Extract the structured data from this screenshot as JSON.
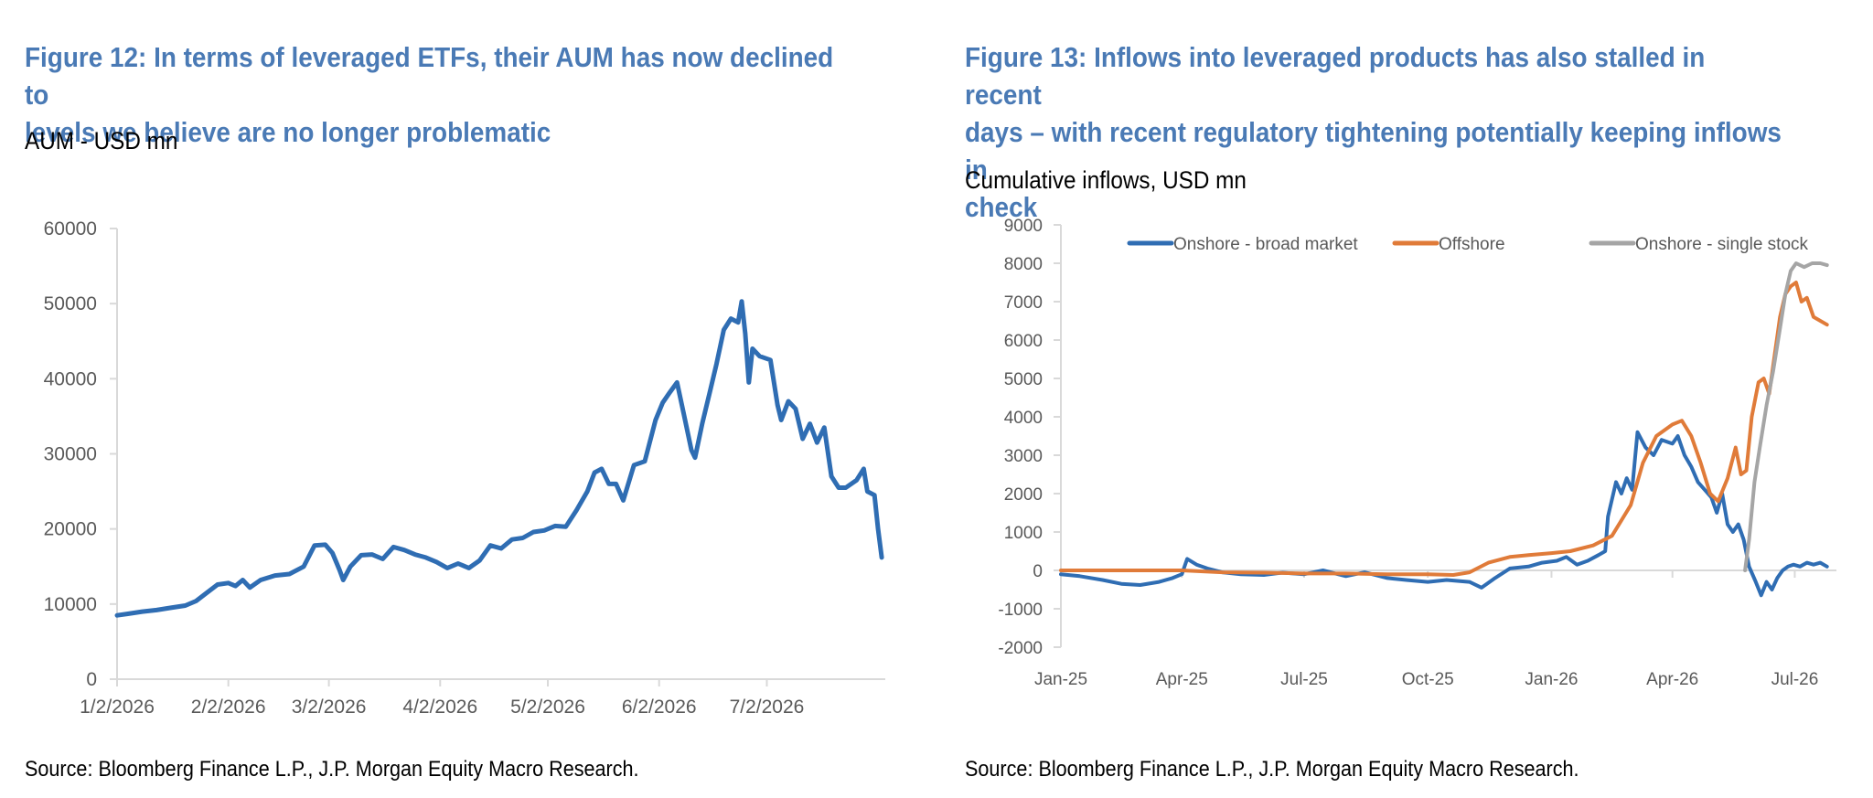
{
  "figures": [
    {
      "title_line1": "Figure 12: In terms of leveraged ETFs, their AUM has now declined to",
      "title_line2": "levels we believe are no longer problematic",
      "subtitle": "AUM - USD mn",
      "source": "Source: Bloomberg Finance L.P., J.P. Morgan Equity Macro Research."
    },
    {
      "title_line1": "Figure 13: Inflows into leveraged products has also stalled in recent",
      "title_line2": "days – with recent regulatory tightening potentially keeping inflows in",
      "title_line3": "check",
      "subtitle": "Cumulative inflows, USD mn",
      "source": "Source: Bloomberg Finance L.P., J.P. Morgan Equity Macro Research."
    }
  ],
  "colors": {
    "title": "#4a7ab5",
    "blue": "#2f6db3",
    "orange": "#e07b39",
    "gray": "#a5a5a5",
    "axis_text": "#595959",
    "axis_line": "#d9d9d9"
  },
  "chart_data": [
    {
      "type": "line",
      "ylim": [
        0,
        60000
      ],
      "yticks": [
        0,
        10000,
        20000,
        30000,
        40000,
        50000,
        60000
      ],
      "xticks": [
        "1/2/2026",
        "2/2/2026",
        "3/2/2026",
        "4/2/2026",
        "5/2/2026",
        "6/2/2026",
        "7/2/2026"
      ],
      "grid": false,
      "legend": "none",
      "series": [
        {
          "color": "#2f6db3",
          "points": [
            [
              "2026-01-02",
              8500
            ],
            [
              "2026-01-05",
              8700
            ],
            [
              "2026-01-09",
              9000
            ],
            [
              "2026-01-13",
              9200
            ],
            [
              "2026-01-17",
              9500
            ],
            [
              "2026-01-21",
              9800
            ],
            [
              "2026-01-24",
              10400
            ],
            [
              "2026-01-27",
              11500
            ],
            [
              "2026-01-30",
              12600
            ],
            [
              "2026-02-02",
              12800
            ],
            [
              "2026-02-04",
              12400
            ],
            [
              "2026-02-06",
              13200
            ],
            [
              "2026-02-08",
              12200
            ],
            [
              "2026-02-11",
              13200
            ],
            [
              "2026-02-15",
              13800
            ],
            [
              "2026-02-19",
              14000
            ],
            [
              "2026-02-23",
              15000
            ],
            [
              "2026-02-26",
              17800
            ],
            [
              "2026-03-01",
              17900
            ],
            [
              "2026-03-03",
              16800
            ],
            [
              "2026-03-05",
              14500
            ],
            [
              "2026-03-06",
              13200
            ],
            [
              "2026-03-08",
              15000
            ],
            [
              "2026-03-11",
              16500
            ],
            [
              "2026-03-14",
              16600
            ],
            [
              "2026-03-17",
              16000
            ],
            [
              "2026-03-20",
              17600
            ],
            [
              "2026-03-23",
              17200
            ],
            [
              "2026-03-26",
              16600
            ],
            [
              "2026-03-29",
              16200
            ],
            [
              "2026-04-01",
              15600
            ],
            [
              "2026-04-04",
              14800
            ],
            [
              "2026-04-07",
              15400
            ],
            [
              "2026-04-10",
              14800
            ],
            [
              "2026-04-13",
              15800
            ],
            [
              "2026-04-16",
              17800
            ],
            [
              "2026-04-19",
              17400
            ],
            [
              "2026-04-22",
              18600
            ],
            [
              "2026-04-25",
              18800
            ],
            [
              "2026-04-28",
              19600
            ],
            [
              "2026-05-01",
              19800
            ],
            [
              "2026-05-04",
              20400
            ],
            [
              "2026-05-07",
              20300
            ],
            [
              "2026-05-10",
              22500
            ],
            [
              "2026-05-13",
              25000
            ],
            [
              "2026-05-15",
              27500
            ],
            [
              "2026-05-17",
              28000
            ],
            [
              "2026-05-19",
              26000
            ],
            [
              "2026-05-21",
              26000
            ],
            [
              "2026-05-23",
              23800
            ],
            [
              "2026-05-26",
              28500
            ],
            [
              "2026-05-29",
              29000
            ],
            [
              "2026-06-01",
              34500
            ],
            [
              "2026-06-03",
              36800
            ],
            [
              "2026-06-05",
              38200
            ],
            [
              "2026-06-07",
              39500
            ],
            [
              "2026-06-09",
              35000
            ],
            [
              "2026-06-11",
              30500
            ],
            [
              "2026-06-12",
              29500
            ],
            [
              "2026-06-14",
              34000
            ],
            [
              "2026-06-16",
              38000
            ],
            [
              "2026-06-18",
              42000
            ],
            [
              "2026-06-20",
              46500
            ],
            [
              "2026-06-22",
              48000
            ],
            [
              "2026-06-24",
              47500
            ],
            [
              "2026-06-25",
              50300
            ],
            [
              "2026-06-26",
              46000
            ],
            [
              "2026-06-27",
              39500
            ],
            [
              "2026-06-28",
              44000
            ],
            [
              "2026-06-30",
              43000
            ],
            [
              "2026-07-03",
              42500
            ],
            [
              "2026-07-05",
              36500
            ],
            [
              "2026-07-06",
              34500
            ],
            [
              "2026-07-08",
              37000
            ],
            [
              "2026-07-10",
              36000
            ],
            [
              "2026-07-12",
              32000
            ],
            [
              "2026-07-14",
              34000
            ],
            [
              "2026-07-16",
              31500
            ],
            [
              "2026-07-18",
              33500
            ],
            [
              "2026-07-20",
              27000
            ],
            [
              "2026-07-22",
              25500
            ],
            [
              "2026-07-24",
              25500
            ],
            [
              "2026-07-27",
              26500
            ],
            [
              "2026-07-29",
              28000
            ],
            [
              "2026-07-30",
              25000
            ],
            [
              "2026-08-01",
              24500
            ],
            [
              "2026-08-02",
              20000
            ],
            [
              "2026-08-03",
              16200
            ]
          ]
        }
      ]
    },
    {
      "type": "line",
      "ylim": [
        -2000,
        9000
      ],
      "yticks": [
        -2000,
        -1000,
        0,
        1000,
        2000,
        3000,
        4000,
        5000,
        6000,
        7000,
        8000,
        9000
      ],
      "xticks": [
        "Jan-25",
        "Apr-25",
        "Jul-25",
        "Oct-25",
        "Jan-26",
        "Apr-26",
        "Jul-26"
      ],
      "grid": false,
      "legend": "top-center",
      "series": [
        {
          "name": "Onshore - broad market",
          "color": "#2f6db3",
          "points": [
            [
              "2025-01-01",
              -100
            ],
            [
              "2025-01-15",
              -150
            ],
            [
              "2025-02-01",
              -250
            ],
            [
              "2025-02-15",
              -350
            ],
            [
              "2025-03-01",
              -380
            ],
            [
              "2025-03-15",
              -300
            ],
            [
              "2025-03-25",
              -200
            ],
            [
              "2025-04-01",
              -100
            ],
            [
              "2025-04-05",
              300
            ],
            [
              "2025-04-12",
              150
            ],
            [
              "2025-04-20",
              50
            ],
            [
              "2025-05-01",
              -50
            ],
            [
              "2025-05-15",
              -100
            ],
            [
              "2025-06-01",
              -120
            ],
            [
              "2025-06-15",
              -60
            ],
            [
              "2025-07-01",
              -100
            ],
            [
              "2025-07-15",
              0
            ],
            [
              "2025-08-01",
              -150
            ],
            [
              "2025-08-15",
              -50
            ],
            [
              "2025-09-01",
              -200
            ],
            [
              "2025-09-15",
              -250
            ],
            [
              "2025-10-01",
              -300
            ],
            [
              "2025-10-15",
              -250
            ],
            [
              "2025-11-01",
              -300
            ],
            [
              "2025-11-10",
              -450
            ],
            [
              "2025-11-20",
              -200
            ],
            [
              "2025-12-01",
              50
            ],
            [
              "2025-12-15",
              100
            ],
            [
              "2025-12-25",
              200
            ],
            [
              "2026-01-05",
              250
            ],
            [
              "2026-01-12",
              350
            ],
            [
              "2026-01-20",
              150
            ],
            [
              "2026-01-28",
              250
            ],
            [
              "2026-02-05",
              400
            ],
            [
              "2026-02-10",
              500
            ],
            [
              "2026-02-12",
              1400
            ],
            [
              "2026-02-18",
              2300
            ],
            [
              "2026-02-22",
              2000
            ],
            [
              "2026-02-26",
              2400
            ],
            [
              "2026-03-02",
              2100
            ],
            [
              "2026-03-06",
              3600
            ],
            [
              "2026-03-12",
              3200
            ],
            [
              "2026-03-18",
              3000
            ],
            [
              "2026-03-24",
              3400
            ],
            [
              "2026-04-01",
              3300
            ],
            [
              "2026-04-05",
              3500
            ],
            [
              "2026-04-10",
              3000
            ],
            [
              "2026-04-15",
              2700
            ],
            [
              "2026-04-20",
              2300
            ],
            [
              "2026-04-25",
              2100
            ],
            [
              "2026-04-30",
              1900
            ],
            [
              "2026-05-04",
              1500
            ],
            [
              "2026-05-08",
              2000
            ],
            [
              "2026-05-12",
              1200
            ],
            [
              "2026-05-16",
              1000
            ],
            [
              "2026-05-20",
              1200
            ],
            [
              "2026-05-24",
              800
            ],
            [
              "2026-05-28",
              100
            ],
            [
              "2026-06-02",
              -300
            ],
            [
              "2026-06-06",
              -650
            ],
            [
              "2026-06-10",
              -300
            ],
            [
              "2026-06-14",
              -500
            ],
            [
              "2026-06-18",
              -200
            ],
            [
              "2026-06-22",
              0
            ],
            [
              "2026-06-26",
              100
            ],
            [
              "2026-06-30",
              150
            ],
            [
              "2026-07-05",
              100
            ],
            [
              "2026-07-10",
              200
            ],
            [
              "2026-07-15",
              150
            ],
            [
              "2026-07-20",
              200
            ],
            [
              "2026-07-25",
              100
            ]
          ]
        },
        {
          "name": "Offshore",
          "color": "#e07b39",
          "points": [
            [
              "2025-01-01",
              0
            ],
            [
              "2025-02-01",
              0
            ],
            [
              "2025-03-01",
              0
            ],
            [
              "2025-04-01",
              0
            ],
            [
              "2025-05-01",
              -50
            ],
            [
              "2025-06-01",
              -60
            ],
            [
              "2025-07-01",
              -80
            ],
            [
              "2025-08-01",
              -80
            ],
            [
              "2025-09-01",
              -100
            ],
            [
              "2025-10-01",
              -100
            ],
            [
              "2025-10-20",
              -120
            ],
            [
              "2025-11-01",
              -50
            ],
            [
              "2025-11-15",
              200
            ],
            [
              "2025-12-01",
              350
            ],
            [
              "2025-12-15",
              400
            ],
            [
              "2026-01-01",
              450
            ],
            [
              "2026-01-15",
              500
            ],
            [
              "2026-02-01",
              650
            ],
            [
              "2026-02-15",
              900
            ],
            [
              "2026-03-01",
              1700
            ],
            [
              "2026-03-10",
              2800
            ],
            [
              "2026-03-20",
              3500
            ],
            [
              "2026-04-01",
              3800
            ],
            [
              "2026-04-08",
              3900
            ],
            [
              "2026-04-15",
              3500
            ],
            [
              "2026-04-22",
              2800
            ],
            [
              "2026-04-29",
              2000
            ],
            [
              "2026-05-05",
              1800
            ],
            [
              "2026-05-12",
              2400
            ],
            [
              "2026-05-18",
              3200
            ],
            [
              "2026-05-22",
              2500
            ],
            [
              "2026-05-26",
              2600
            ],
            [
              "2026-05-30",
              4000
            ],
            [
              "2026-06-04",
              4900
            ],
            [
              "2026-06-08",
              5000
            ],
            [
              "2026-06-12",
              4600
            ],
            [
              "2026-06-16",
              5600
            ],
            [
              "2026-06-20",
              6600
            ],
            [
              "2026-06-24",
              7200
            ],
            [
              "2026-06-28",
              7400
            ],
            [
              "2026-07-02",
              7500
            ],
            [
              "2026-07-06",
              7000
            ],
            [
              "2026-07-10",
              7100
            ],
            [
              "2026-07-15",
              6600
            ],
            [
              "2026-07-20",
              6500
            ],
            [
              "2026-07-25",
              6400
            ]
          ]
        },
        {
          "name": "Onshore - single stock",
          "color": "#a5a5a5",
          "points": [
            [
              "2026-05-25",
              0
            ],
            [
              "2026-05-28",
              800
            ],
            [
              "2026-06-01",
              2300
            ],
            [
              "2026-06-05",
              3200
            ],
            [
              "2026-06-10",
              4300
            ],
            [
              "2026-06-15",
              5200
            ],
            [
              "2026-06-20",
              6300
            ],
            [
              "2026-06-24",
              7200
            ],
            [
              "2026-06-28",
              7800
            ],
            [
              "2026-07-02",
              8000
            ],
            [
              "2026-07-08",
              7900
            ],
            [
              "2026-07-14",
              8000
            ],
            [
              "2026-07-20",
              8000
            ],
            [
              "2026-07-25",
              7950
            ]
          ]
        }
      ]
    }
  ]
}
